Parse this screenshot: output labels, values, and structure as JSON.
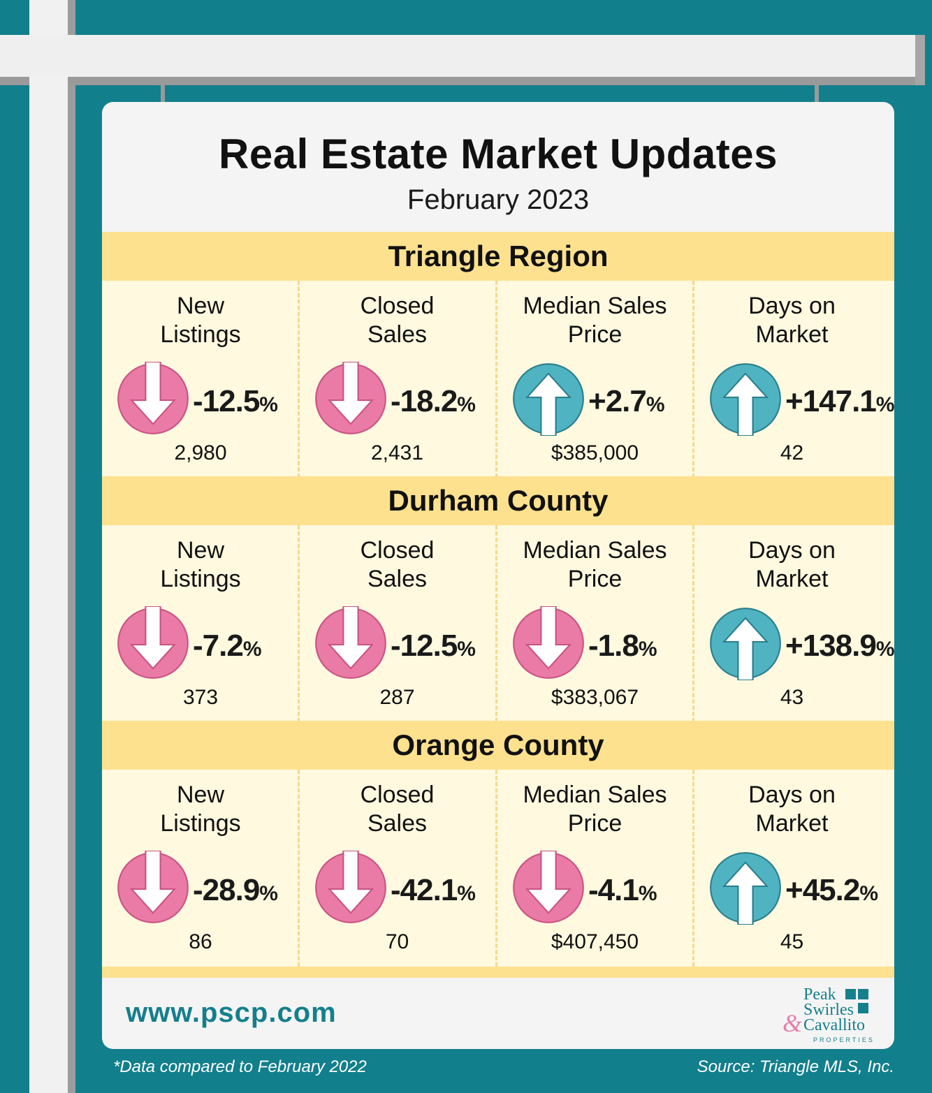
{
  "title": "Real Estate Market Updates",
  "subtitle": "February 2023",
  "colors": {
    "background_teal": "#127f8c",
    "band_yellow": "#fde18f",
    "cell_cream": "#fff9df",
    "down_pink": "#ea7aa6",
    "up_teal": "#4fb3c1"
  },
  "sections": [
    {
      "name": "Triangle Region",
      "metrics": [
        {
          "label": "New\nListings",
          "direction": "down",
          "icon": "down-arrow-icon",
          "change": "-12.5",
          "unit": "%",
          "value": "2,980"
        },
        {
          "label": "Closed\nSales",
          "direction": "down",
          "icon": "down-arrow-icon",
          "change": "-18.2",
          "unit": "%",
          "value": "2,431"
        },
        {
          "label": "Median Sales\nPrice",
          "direction": "up",
          "icon": "up-arrow-icon",
          "change": "+2.7",
          "unit": "%",
          "value": "$385,000"
        },
        {
          "label": "Days on\nMarket",
          "direction": "up",
          "icon": "up-arrow-icon",
          "change": "+147.1",
          "unit": "%",
          "value": "42"
        }
      ]
    },
    {
      "name": "Durham County",
      "metrics": [
        {
          "label": "New\nListings",
          "direction": "down",
          "icon": "down-arrow-icon",
          "change": "-7.2",
          "unit": "%",
          "value": "373"
        },
        {
          "label": "Closed\nSales",
          "direction": "down",
          "icon": "down-arrow-icon",
          "change": "-12.5",
          "unit": "%",
          "value": "287"
        },
        {
          "label": "Median Sales\nPrice",
          "direction": "down",
          "icon": "down-arrow-icon",
          "change": "-1.8",
          "unit": "%",
          "value": "$383,067"
        },
        {
          "label": "Days on\nMarket",
          "direction": "up",
          "icon": "up-arrow-icon",
          "change": "+138.9",
          "unit": "%",
          "value": "43"
        }
      ]
    },
    {
      "name": "Orange County",
      "metrics": [
        {
          "label": "New\nListings",
          "direction": "down",
          "icon": "down-arrow-icon",
          "change": "-28.9",
          "unit": "%",
          "value": "86"
        },
        {
          "label": "Closed\nSales",
          "direction": "down",
          "icon": "down-arrow-icon",
          "change": "-42.1",
          "unit": "%",
          "value": "70"
        },
        {
          "label": "Median Sales\nPrice",
          "direction": "down",
          "icon": "down-arrow-icon",
          "change": "-4.1",
          "unit": "%",
          "value": "$407,450"
        },
        {
          "label": "Days on\nMarket",
          "direction": "up",
          "icon": "up-arrow-icon",
          "change": "+45.2",
          "unit": "%",
          "value": "45"
        }
      ]
    }
  ],
  "website": "www.pscp.com",
  "logo": {
    "line1": "Peak",
    "line2": "Swirles",
    "ampersand": "&",
    "line3": "Cavallito",
    "sub": "PROPERTIES"
  },
  "footnote": "*Data compared to February 2022",
  "source": "Source: Triangle MLS, Inc."
}
